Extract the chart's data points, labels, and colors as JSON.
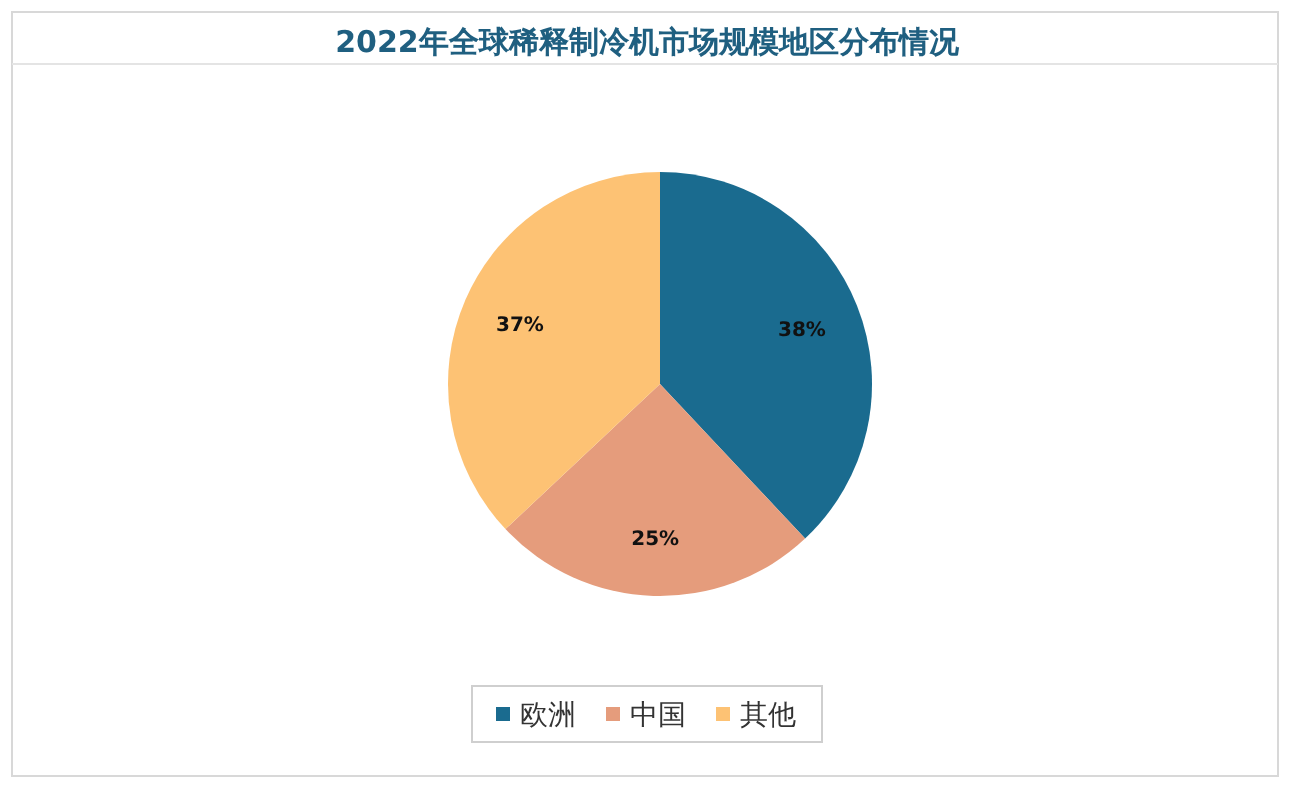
{
  "chart_data": {
    "type": "pie",
    "title": "2022年全球稀释制冷机市场规模地区分布情况",
    "categories": [
      "欧洲",
      "中国",
      "其他"
    ],
    "values": [
      38,
      25,
      37
    ],
    "value_labels": [
      "38%",
      "25%",
      "37%"
    ],
    "colors": [
      "#1a6b8f",
      "#e59c7c",
      "#fdc274"
    ],
    "legend": "bottom"
  }
}
